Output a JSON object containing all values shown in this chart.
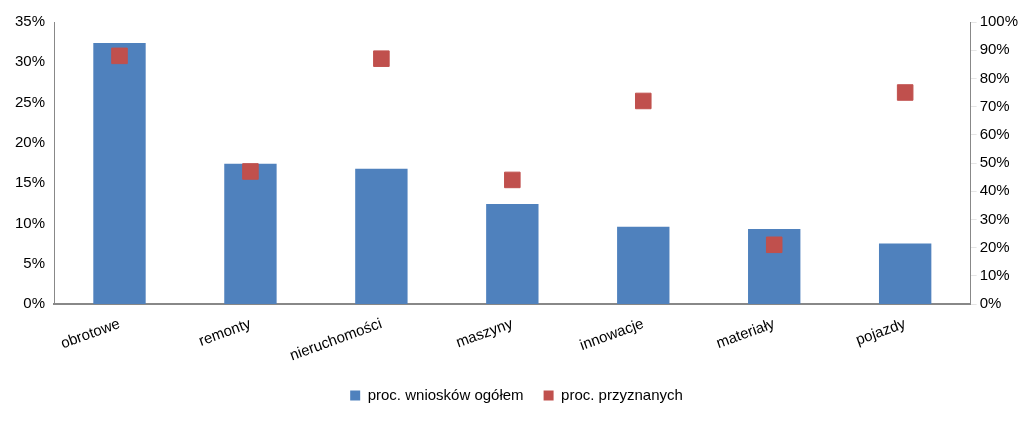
{
  "chart_data": {
    "type": "bar",
    "categories": [
      "obrotowe",
      "remonty",
      "nieruchomości",
      "maszyny",
      "innowacje",
      "materiały",
      "pojazdy"
    ],
    "series": [
      {
        "name": "proc. wniosków ogółem",
        "color": "#4f81bd",
        "values": [
          32.4,
          17.4,
          16.8,
          12.4,
          9.6,
          9.3,
          7.5
        ]
      },
      {
        "name": "proc. przyznanych",
        "type": "scatter",
        "axis": "y2",
        "color": "#c0504d",
        "marker": "square",
        "values": [
          88,
          47,
          87,
          44,
          72,
          21,
          75
        ]
      }
    ],
    "ylim": [
      0,
      35
    ],
    "yticks": [
      {
        "value": 0,
        "label": "0%"
      },
      {
        "value": 5,
        "label": "5%"
      },
      {
        "value": 10,
        "label": "10%"
      },
      {
        "value": 15,
        "label": "15%"
      },
      {
        "value": 20,
        "label": "20%"
      },
      {
        "value": 25,
        "label": "25%"
      },
      {
        "value": 30,
        "label": "30%"
      },
      {
        "value": 35,
        "label": "35%"
      }
    ],
    "y2lim": [
      0,
      100
    ],
    "y2ticks": [
      {
        "value": 0,
        "label": "0%"
      },
      {
        "value": 10,
        "label": "10%"
      },
      {
        "value": 20,
        "label": "20%"
      },
      {
        "value": 30,
        "label": "30%"
      },
      {
        "value": 40,
        "label": "40%"
      },
      {
        "value": 50,
        "label": "50%"
      },
      {
        "value": 60,
        "label": "60%"
      },
      {
        "value": 70,
        "label": "70%"
      },
      {
        "value": 80,
        "label": "80%"
      },
      {
        "value": 90,
        "label": "90%"
      },
      {
        "value": 100,
        "label": "100%"
      }
    ],
    "grid": false,
    "legend": "bottom"
  }
}
